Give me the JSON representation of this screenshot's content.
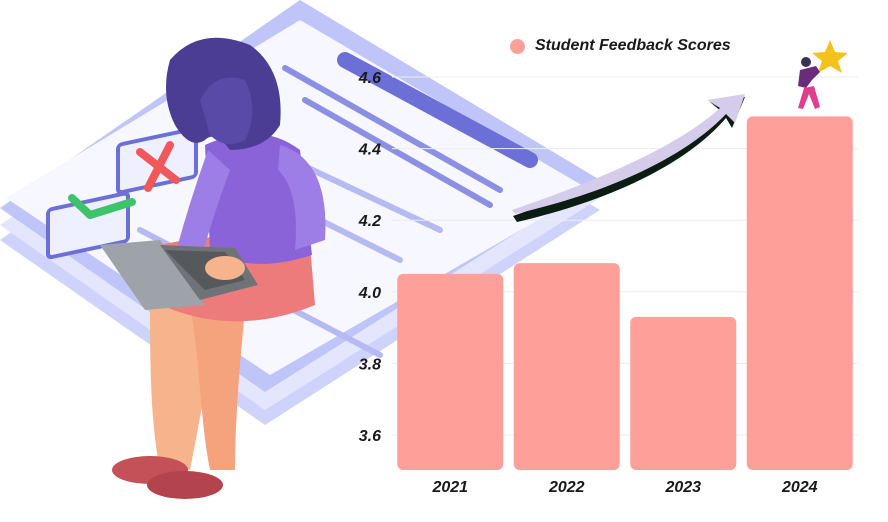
{
  "chart_data": {
    "type": "bar",
    "categories": [
      "2021",
      "2022",
      "2023",
      "2024"
    ],
    "series": [
      {
        "name": "Student Feedback Scores",
        "values": [
          4.05,
          4.08,
          3.93,
          4.49
        ]
      }
    ],
    "title": "",
    "xlabel": "",
    "ylabel": "",
    "ylim": [
      3.5,
      4.7
    ],
    "yticks": [
      "3.6",
      "3.8",
      "4.0",
      "4.2",
      "4.4",
      "4.6"
    ],
    "grid": true,
    "legend_position": "top",
    "colors": {
      "bar": "#ff9f9a",
      "tick_text": "#1a1a1a",
      "grid": "#ececec"
    }
  },
  "illustration": {
    "icons": [
      "woman-with-laptop-icon",
      "checklist-document-icon",
      "check-mark-icon",
      "cross-mark-icon",
      "rising-arrow-icon",
      "person-holding-star-icon"
    ]
  }
}
